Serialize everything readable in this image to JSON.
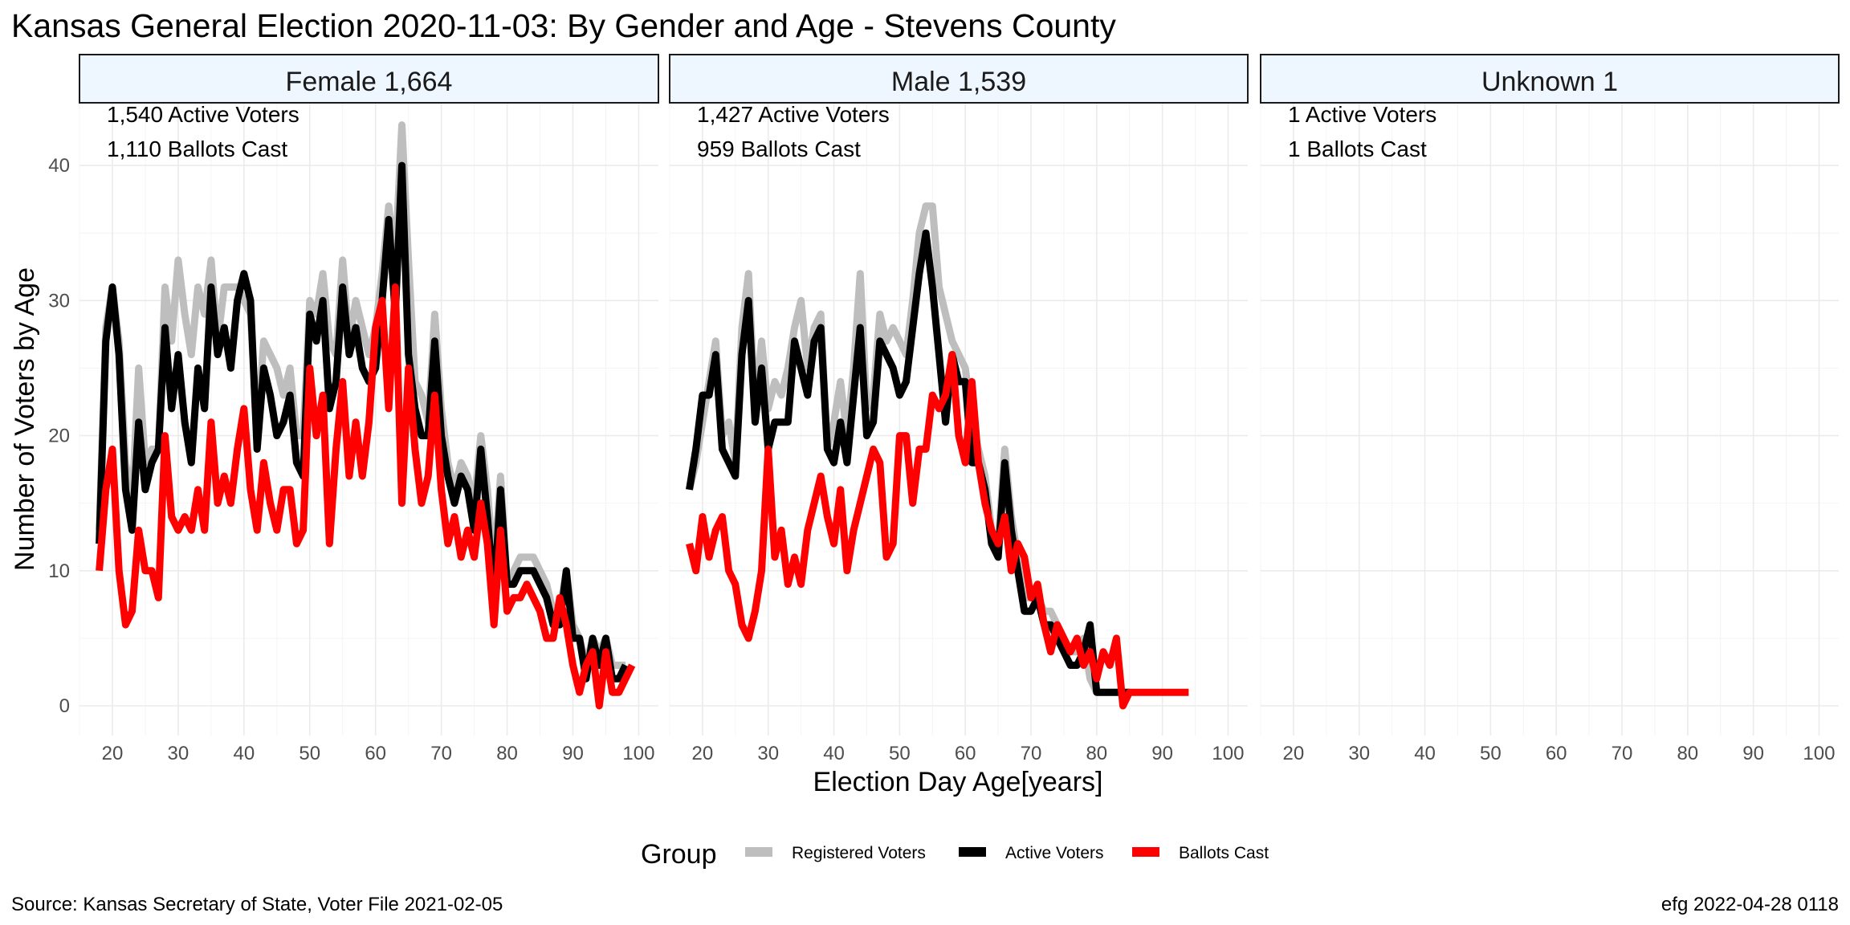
{
  "chart_data": {
    "type": "line",
    "title": "Kansas General Election 2020-11-03:  By Gender and Age - Stevens County",
    "xlabel": "Election Day Age[years]",
    "ylabel": "Number of Voters by Age",
    "xlim": [
      15,
      103
    ],
    "ylim": [
      -2.2,
      45
    ],
    "x_ticks": [
      20,
      30,
      40,
      50,
      60,
      70,
      80,
      90,
      100
    ],
    "y_ticks": [
      0,
      10,
      20,
      30,
      40
    ],
    "grid": true,
    "legend": {
      "title": "Group",
      "position": "bottom",
      "entries": [
        {
          "label": "Registered Voters",
          "color": "#bebebe"
        },
        {
          "label": "Active Voters",
          "color": "#000000"
        },
        {
          "label": "Ballots Cast",
          "color": "#ff0000"
        }
      ]
    },
    "caption_left": "Source:  Kansas Secretary of State, Voter File  2021-02-05",
    "caption_right": "efg 2022-04-28 0118",
    "panels": [
      {
        "strip": "Female 1,664",
        "annotations": [
          "1,540 Active Voters",
          "1,110 Ballots Cast"
        ],
        "series": [
          {
            "name": "Registered Voters",
            "color": "#bebebe",
            "x_start": 18,
            "values": [
              13,
              28,
              31,
              27,
              18,
              15,
              25,
              18,
              19,
              19,
              31,
              27,
              33,
              29,
              26,
              31,
              29,
              33,
              27,
              31,
              31,
              31,
              30,
              29,
              20,
              27,
              26,
              25,
              23,
              25,
              20,
              20,
              30,
              29,
              32,
              27,
              26,
              33,
              27,
              30,
              28,
              26,
              28,
              32,
              37,
              33,
              43,
              33,
              24,
              23,
              21,
              29,
              22,
              18,
              16,
              18,
              17,
              15,
              20,
              16,
              10,
              17,
              9,
              10,
              11,
              11,
              11,
              10,
              9,
              7,
              7,
              10,
              6,
              5,
              3,
              5,
              4,
              5,
              3,
              3,
              3
            ]
          },
          {
            "name": "Active Voters",
            "color": "#000000",
            "x_start": 18,
            "values": [
              12,
              27,
              31,
              26,
              16,
              13,
              21,
              16,
              18,
              19,
              28,
              22,
              26,
              21,
              18,
              25,
              22,
              31,
              26,
              28,
              25,
              30,
              32,
              30,
              19,
              25,
              23,
              20,
              21,
              23,
              18,
              17,
              29,
              27,
              30,
              22,
              24,
              31,
              26,
              28,
              25,
              24,
              25,
              30,
              36,
              29,
              40,
              26,
              22,
              20,
              20,
              27,
              20,
              17,
              15,
              17,
              16,
              13,
              19,
              14,
              8,
              16,
              9,
              9,
              10,
              10,
              10,
              9,
              8,
              6,
              6,
              10,
              5,
              5,
              2,
              5,
              3,
              5,
              2,
              2,
              3
            ]
          },
          {
            "name": "Ballots Cast",
            "color": "#ff0000",
            "x_start": 18,
            "values": [
              10,
              16,
              19,
              10,
              6,
              7,
              13,
              10,
              10,
              8,
              20,
              14,
              13,
              14,
              13,
              16,
              13,
              21,
              15,
              17,
              15,
              19,
              22,
              16,
              13,
              18,
              15,
              13,
              16,
              16,
              12,
              13,
              25,
              20,
              23,
              12,
              19,
              24,
              17,
              21,
              17,
              21,
              28,
              30,
              22,
              31,
              15,
              25,
              19,
              15,
              17,
              23,
              16,
              12,
              14,
              11,
              13,
              11,
              15,
              12,
              6,
              13,
              7,
              8,
              8,
              9,
              8,
              7,
              5,
              5,
              8,
              6,
              3,
              1,
              3,
              4,
              0,
              4,
              1,
              1,
              2,
              3
            ]
          }
        ]
      },
      {
        "strip": "Male 1,539",
        "annotations": [
          "1,427 Active Voters",
          "959 Ballots Cast"
        ],
        "series": [
          {
            "name": "Registered Voters",
            "color": "#bebebe",
            "x_start": 18,
            "values": [
              16,
              18,
              21,
              24,
              27,
              20,
              21,
              18,
              28,
              32,
              22,
              27,
              22,
              24,
              23,
              25,
              28,
              30,
              25,
              28,
              29,
              19,
              21,
              24,
              20,
              25,
              32,
              22,
              23,
              29,
              27,
              28,
              27,
              26,
              30,
              35,
              37,
              37,
              31,
              29,
              27,
              26,
              25,
              21,
              19,
              17,
              13,
              12,
              19,
              14,
              11,
              8,
              8,
              8,
              7,
              7,
              6,
              4,
              4,
              4,
              5,
              2,
              1,
              1,
              1,
              1,
              1,
              1
            ]
          },
          {
            "name": "Active Voters",
            "color": "#000000",
            "x_start": 18,
            "values": [
              16,
              19,
              23,
              23,
              26,
              19,
              18,
              17,
              26,
              30,
              21,
              25,
              19,
              21,
              21,
              21,
              27,
              25,
              23,
              27,
              28,
              19,
              18,
              21,
              18,
              23,
              28,
              20,
              21,
              27,
              26,
              25,
              23,
              24,
              28,
              32,
              35,
              31,
              26,
              21,
              26,
              24,
              24,
              18,
              18,
              16,
              12,
              11,
              18,
              13,
              10,
              7,
              7,
              8,
              6,
              6,
              5,
              4,
              3,
              3,
              4,
              6,
              1,
              1,
              1,
              1,
              1,
              1
            ]
          },
          {
            "name": "Ballots Cast",
            "color": "#ff0000",
            "x_start": 18,
            "values": [
              12,
              10,
              14,
              11,
              13,
              14,
              10,
              9,
              6,
              5,
              7,
              10,
              19,
              11,
              13,
              9,
              11,
              9,
              13,
              15,
              17,
              14,
              12,
              16,
              10,
              13,
              15,
              17,
              19,
              18,
              11,
              12,
              20,
              20,
              15,
              19,
              19,
              23,
              22,
              23,
              26,
              20,
              18,
              24,
              18,
              15,
              13,
              12,
              14,
              10,
              12,
              11,
              8,
              9,
              6,
              4,
              6,
              5,
              4,
              5,
              3,
              4,
              2,
              4,
              3,
              5,
              0,
              1,
              1,
              1,
              1,
              1,
              1,
              1,
              1,
              1,
              1
            ]
          }
        ]
      },
      {
        "strip": "Unknown 1",
        "annotations": [
          "1 Active Voters",
          "1 Ballots Cast"
        ],
        "series": []
      }
    ]
  }
}
